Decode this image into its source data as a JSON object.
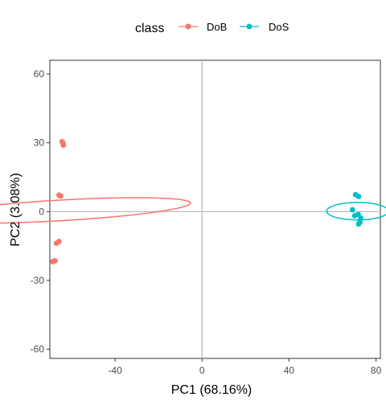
{
  "chart_data": {
    "type": "scatter",
    "title": "",
    "xlabel": "PC1 (68.16%)",
    "ylabel": "PC2 (3.08%)",
    "xlim": [
      -70,
      82
    ],
    "ylim": [
      -64,
      66
    ],
    "xticks": [
      -40,
      0,
      40,
      80
    ],
    "yticks": [
      -60,
      -30,
      0,
      30,
      60
    ],
    "grid": false,
    "reference_lines": {
      "x": 0,
      "y": 0
    },
    "legend": {
      "title": "class",
      "position": "top"
    },
    "series": [
      {
        "name": "DoB",
        "color": "#F8766D",
        "points": [
          [
            -64.4,
            30.5
          ],
          [
            -63.8,
            29.0
          ],
          [
            -64.0,
            30.0
          ],
          [
            -65.8,
            7.2
          ],
          [
            -65.0,
            6.8
          ],
          [
            -65.8,
            -13.0
          ],
          [
            -67.0,
            -13.8
          ],
          [
            -68.6,
            -21.8
          ],
          [
            -67.6,
            -21.4
          ]
        ],
        "ellipse": {
          "cx": -65.7,
          "cy": 0.5,
          "rx": 4.5,
          "ry": 60.5,
          "angle_deg": -86.9
        }
      },
      {
        "name": "DoS",
        "color": "#00BFC4",
        "points": [
          [
            70.6,
            7.4
          ],
          [
            72.0,
            6.6
          ],
          [
            69.2,
            0.8
          ],
          [
            70.2,
            -1.8
          ],
          [
            71.8,
            -1.2
          ],
          [
            73.0,
            -2.8
          ],
          [
            72.0,
            -5.4
          ],
          [
            72.6,
            -4.6
          ]
        ],
        "ellipse": {
          "cx": 71.5,
          "cy": 0.2,
          "rx": 3.8,
          "ry": 14.2,
          "angle_deg": -90
        }
      }
    ]
  }
}
